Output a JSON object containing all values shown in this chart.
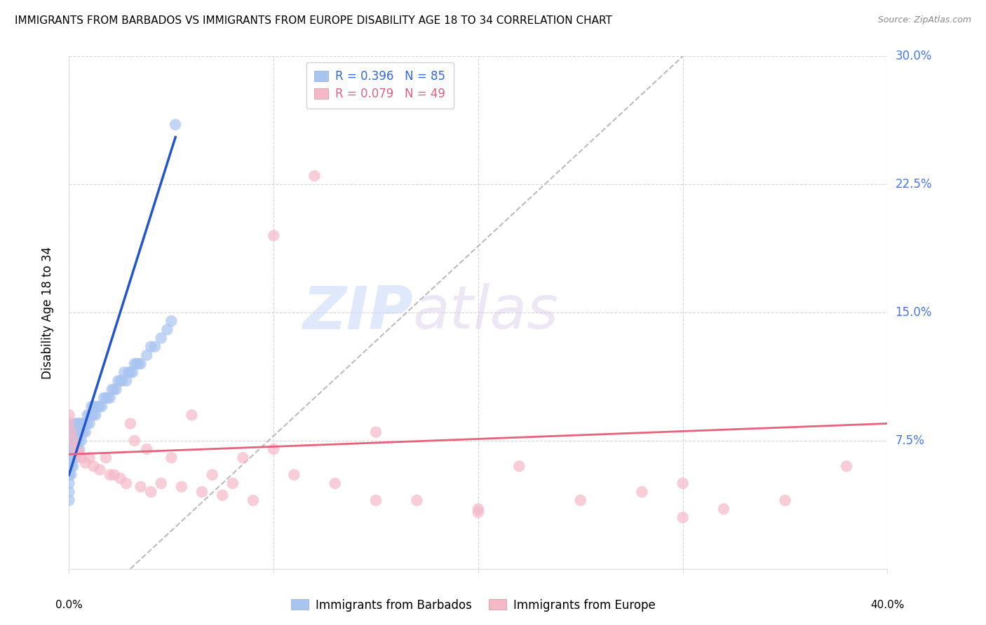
{
  "title": "IMMIGRANTS FROM BARBADOS VS IMMIGRANTS FROM EUROPE DISABILITY AGE 18 TO 34 CORRELATION CHART",
  "source": "Source: ZipAtlas.com",
  "ylabel": "Disability Age 18 to 34",
  "legend1_R": "0.396",
  "legend1_N": "85",
  "legend2_R": "0.079",
  "legend2_N": "49",
  "legend1_label": "Immigrants from Barbados",
  "legend2_label": "Immigrants from Europe",
  "color_blue": "#a8c4f0",
  "color_pink": "#f5b8c8",
  "color_line_blue": "#2255cc",
  "color_line_pink": "#e8607a",
  "color_dashed": "#bbbbbb",
  "color_axis_right": "#4477ee",
  "color_legend_blue": "#3366dd",
  "color_legend_pink": "#e06080",
  "watermark_zip": "ZIP",
  "watermark_atlas": "atlas",
  "xlim": [
    0.0,
    0.4
  ],
  "ylim": [
    0.0,
    0.3
  ],
  "yticks": [
    0.0,
    0.075,
    0.15,
    0.225,
    0.3
  ],
  "yticklabels": [
    "",
    "7.5%",
    "15.0%",
    "22.5%",
    "30.0%"
  ],
  "xtick_labels": [
    "0.0%",
    "40.0%"
  ],
  "barbados_x": [
    0.0,
    0.0,
    0.0,
    0.0,
    0.0,
    0.0,
    0.0,
    0.0,
    0.0,
    0.0,
    0.0,
    0.0,
    0.0,
    0.0,
    0.0,
    0.001,
    0.001,
    0.001,
    0.001,
    0.001,
    0.001,
    0.001,
    0.002,
    0.002,
    0.002,
    0.002,
    0.002,
    0.003,
    0.003,
    0.003,
    0.003,
    0.003,
    0.004,
    0.004,
    0.004,
    0.004,
    0.005,
    0.005,
    0.005,
    0.005,
    0.006,
    0.006,
    0.006,
    0.007,
    0.007,
    0.008,
    0.008,
    0.009,
    0.009,
    0.01,
    0.01,
    0.011,
    0.011,
    0.012,
    0.012,
    0.013,
    0.014,
    0.015,
    0.016,
    0.017,
    0.018,
    0.019,
    0.02,
    0.021,
    0.022,
    0.023,
    0.024,
    0.025,
    0.026,
    0.027,
    0.028,
    0.029,
    0.03,
    0.031,
    0.032,
    0.033,
    0.034,
    0.035,
    0.038,
    0.04,
    0.042,
    0.045,
    0.048,
    0.05,
    0.052
  ],
  "barbados_y": [
    0.04,
    0.045,
    0.05,
    0.055,
    0.055,
    0.06,
    0.06,
    0.065,
    0.065,
    0.065,
    0.07,
    0.07,
    0.075,
    0.075,
    0.08,
    0.055,
    0.06,
    0.065,
    0.07,
    0.075,
    0.08,
    0.085,
    0.06,
    0.065,
    0.07,
    0.075,
    0.08,
    0.065,
    0.07,
    0.075,
    0.08,
    0.085,
    0.07,
    0.075,
    0.08,
    0.085,
    0.07,
    0.075,
    0.08,
    0.085,
    0.075,
    0.08,
    0.085,
    0.08,
    0.085,
    0.08,
    0.085,
    0.085,
    0.09,
    0.085,
    0.09,
    0.09,
    0.095,
    0.09,
    0.095,
    0.09,
    0.095,
    0.095,
    0.095,
    0.1,
    0.1,
    0.1,
    0.1,
    0.105,
    0.105,
    0.105,
    0.11,
    0.11,
    0.11,
    0.115,
    0.11,
    0.115,
    0.115,
    0.115,
    0.12,
    0.12,
    0.12,
    0.12,
    0.125,
    0.13,
    0.13,
    0.135,
    0.14,
    0.145,
    0.26
  ],
  "europe_x": [
    0.0,
    0.0,
    0.001,
    0.002,
    0.003,
    0.005,
    0.006,
    0.008,
    0.01,
    0.012,
    0.015,
    0.018,
    0.02,
    0.022,
    0.025,
    0.028,
    0.03,
    0.032,
    0.035,
    0.038,
    0.04,
    0.045,
    0.05,
    0.055,
    0.06,
    0.065,
    0.07,
    0.075,
    0.08,
    0.085,
    0.09,
    0.1,
    0.11,
    0.12,
    0.13,
    0.15,
    0.17,
    0.2,
    0.22,
    0.25,
    0.28,
    0.3,
    0.32,
    0.35,
    0.38,
    0.1,
    0.15,
    0.2,
    0.3
  ],
  "europe_y": [
    0.085,
    0.09,
    0.08,
    0.075,
    0.07,
    0.068,
    0.065,
    0.062,
    0.065,
    0.06,
    0.058,
    0.065,
    0.055,
    0.055,
    0.053,
    0.05,
    0.085,
    0.075,
    0.048,
    0.07,
    0.045,
    0.05,
    0.065,
    0.048,
    0.09,
    0.045,
    0.055,
    0.043,
    0.05,
    0.065,
    0.04,
    0.07,
    0.055,
    0.23,
    0.05,
    0.08,
    0.04,
    0.033,
    0.06,
    0.04,
    0.045,
    0.05,
    0.035,
    0.04,
    0.06,
    0.195,
    0.04,
    0.035,
    0.03
  ],
  "blue_line_x": [
    0.0,
    0.052
  ],
  "blue_line_y_intercept": 0.055,
  "blue_line_slope": 3.8,
  "pink_line_x": [
    0.0,
    0.4
  ],
  "pink_line_y_start": 0.067,
  "pink_line_y_end": 0.085,
  "dash_line_x": [
    0.03,
    0.3
  ],
  "dash_line_y": [
    0.0,
    0.3
  ]
}
